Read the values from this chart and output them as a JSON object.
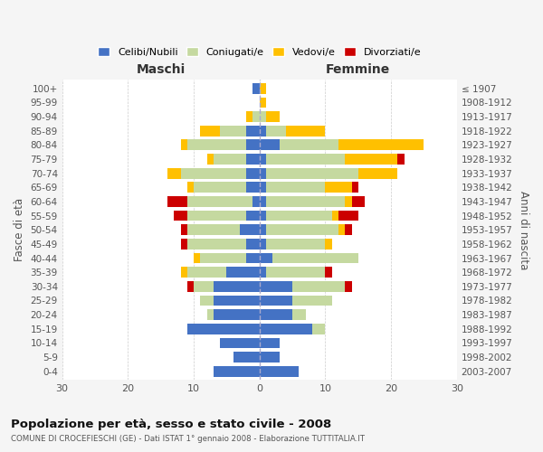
{
  "age_groups": [
    "100+",
    "95-99",
    "90-94",
    "85-89",
    "80-84",
    "75-79",
    "70-74",
    "65-69",
    "60-64",
    "55-59",
    "50-54",
    "45-49",
    "40-44",
    "35-39",
    "30-34",
    "25-29",
    "20-24",
    "15-19",
    "10-14",
    "5-9",
    "0-4"
  ],
  "birth_years": [
    "≤ 1907",
    "1908-1912",
    "1913-1917",
    "1918-1922",
    "1923-1927",
    "1928-1932",
    "1933-1937",
    "1938-1942",
    "1943-1947",
    "1948-1952",
    "1953-1957",
    "1958-1962",
    "1963-1967",
    "1968-1972",
    "1973-1977",
    "1978-1982",
    "1983-1987",
    "1988-1992",
    "1993-1997",
    "1998-2002",
    "2003-2007"
  ],
  "maschi": {
    "celibi": [
      1,
      0,
      0,
      2,
      2,
      2,
      2,
      2,
      1,
      2,
      3,
      2,
      2,
      5,
      7,
      7,
      7,
      11,
      6,
      4,
      7
    ],
    "coniugati": [
      0,
      0,
      1,
      4,
      9,
      5,
      10,
      8,
      10,
      9,
      8,
      9,
      7,
      6,
      3,
      2,
      1,
      0,
      0,
      0,
      0
    ],
    "vedovi": [
      0,
      0,
      1,
      3,
      1,
      1,
      2,
      1,
      0,
      0,
      0,
      0,
      1,
      1,
      0,
      0,
      0,
      0,
      0,
      0,
      0
    ],
    "divorziati": [
      0,
      0,
      0,
      0,
      0,
      0,
      0,
      0,
      3,
      2,
      1,
      1,
      0,
      0,
      1,
      0,
      0,
      0,
      0,
      0,
      0
    ]
  },
  "femmine": {
    "nubili": [
      0,
      0,
      0,
      1,
      3,
      1,
      1,
      1,
      1,
      1,
      1,
      1,
      2,
      1,
      5,
      5,
      5,
      8,
      3,
      3,
      6
    ],
    "coniugate": [
      0,
      0,
      1,
      3,
      9,
      12,
      14,
      9,
      12,
      10,
      11,
      9,
      13,
      9,
      8,
      6,
      2,
      2,
      0,
      0,
      0
    ],
    "vedove": [
      1,
      1,
      2,
      6,
      13,
      8,
      6,
      4,
      1,
      1,
      1,
      1,
      0,
      0,
      0,
      0,
      0,
      0,
      0,
      0,
      0
    ],
    "divorziate": [
      0,
      0,
      0,
      0,
      0,
      1,
      0,
      1,
      2,
      3,
      1,
      0,
      0,
      1,
      1,
      0,
      0,
      0,
      0,
      0,
      0
    ]
  },
  "colors": {
    "celibi": "#4472c4",
    "coniugati": "#c5d9a0",
    "vedovi": "#ffc000",
    "divorziati": "#cc0000"
  },
  "title": "Popolazione per età, sesso e stato civile - 2008",
  "subtitle": "COMUNE DI CROCEFIESCHI (GE) - Dati ISTAT 1° gennaio 2008 - Elaborazione TUTTITALIA.IT",
  "ylabel_left": "Fasce di età",
  "ylabel_right": "Anni di nascita",
  "xlabel_left": "Maschi",
  "xlabel_right": "Femmine",
  "xlim": 30,
  "legend_labels": [
    "Celibi/Nubili",
    "Coniugati/e",
    "Vedovi/e",
    "Divorziati/e"
  ],
  "bg_color": "#f5f5f5",
  "plot_bg": "#ffffff"
}
